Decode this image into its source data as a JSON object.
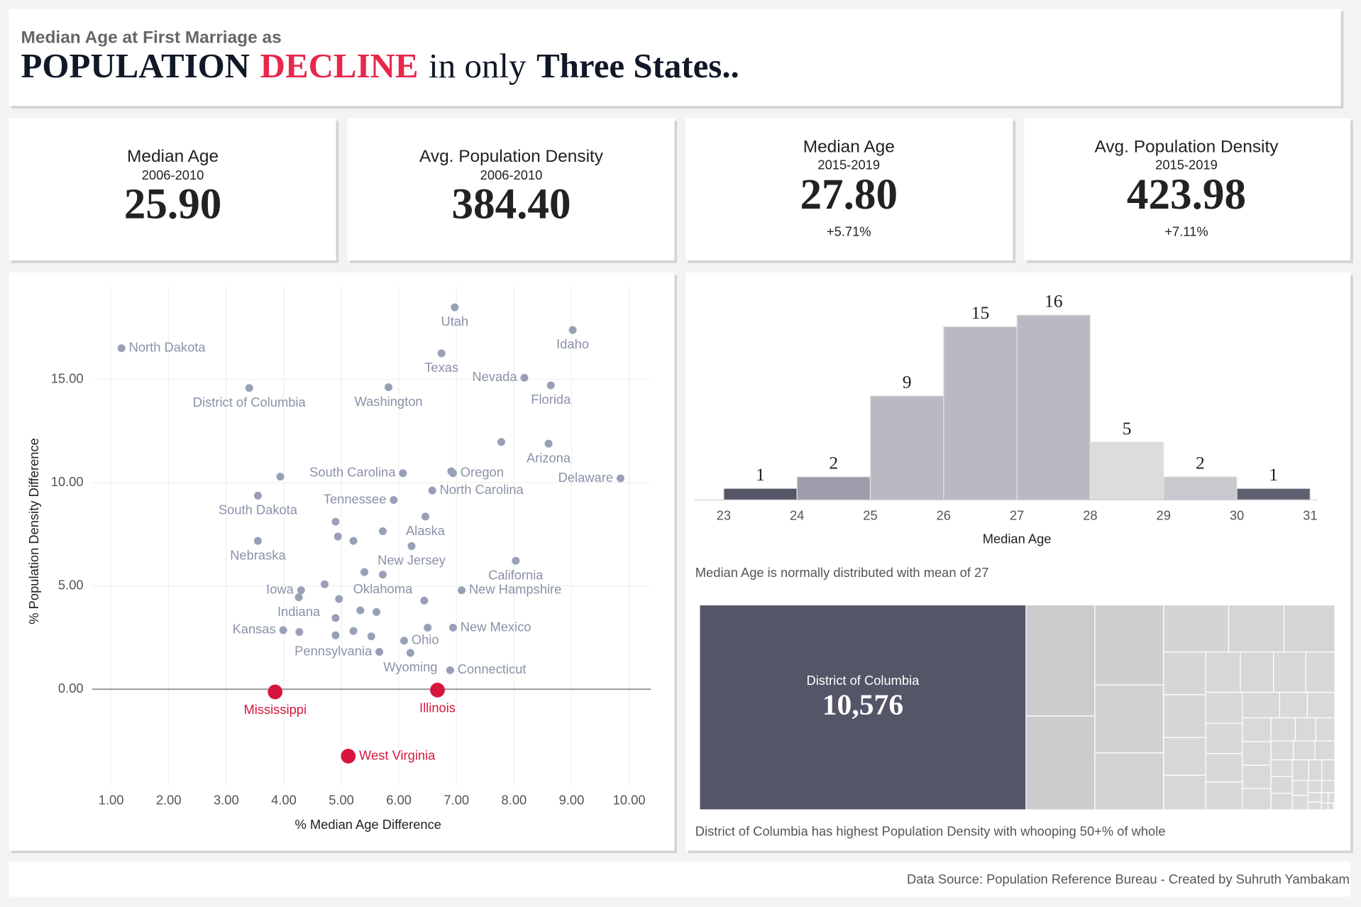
{
  "header": {
    "subtitle": "Median Age at First Marriage as",
    "title_parts": [
      "POPULATION",
      "DECLINE",
      "in only",
      "Three States.."
    ]
  },
  "kpis": [
    {
      "title": "Median Age",
      "period": "2006-2010",
      "value": "25.90"
    },
    {
      "title": "Avg. Population Density",
      "period": "2006-2010",
      "value": "384.40"
    },
    {
      "title": "Median Age",
      "period": "2015-2019",
      "value": "27.80",
      "change": "+5.71%"
    },
    {
      "title": "Avg. Population Density",
      "period": "2015-2019",
      "value": "423.98",
      "change": "+7.11%"
    }
  ],
  "chart_data": [
    {
      "type": "scatter",
      "xlabel": "% Median Age Difference",
      "ylabel": "% Population Density Difference",
      "xlim": [
        0.67,
        10.38
      ],
      "ylim": [
        -4.66,
        19.5
      ],
      "grid": true,
      "xticks": [
        {
          "value": 1,
          "label": "1.00"
        },
        {
          "value": 2,
          "label": "2.00"
        },
        {
          "value": 3,
          "label": "3.00"
        },
        {
          "value": 4,
          "label": "4.00"
        },
        {
          "value": 5,
          "label": "5.00"
        },
        {
          "value": 6,
          "label": "6.00"
        },
        {
          "value": 7,
          "label": "7.00"
        },
        {
          "value": 8,
          "label": "8.00"
        },
        {
          "value": 9,
          "label": "9.00"
        },
        {
          "value": 10,
          "label": "10.00"
        }
      ],
      "yticks": [
        {
          "value": 0,
          "label": "0.00"
        },
        {
          "value": 5,
          "label": "5.00"
        },
        {
          "value": 10,
          "label": "10.00"
        },
        {
          "value": 15,
          "label": "15.00"
        }
      ],
      "series": [
        {
          "color": "#97a0b6",
          "points": [
            {
              "label": "North Dakota",
              "x": 1.18,
              "y": 16.51
            },
            {
              "label": "Utah",
              "x": 6.97,
              "y": 18.49
            },
            {
              "label": "Idaho",
              "x": 9.02,
              "y": 17.39
            },
            {
              "label": "Texas",
              "x": 6.74,
              "y": 16.26
            },
            {
              "label": "District of Columbia",
              "x": 3.4,
              "y": 14.58
            },
            {
              "label": "Washington",
              "x": 5.82,
              "y": 14.62
            },
            {
              "label": "Nevada",
              "x": 8.18,
              "y": 15.08
            },
            {
              "label": "Florida",
              "x": 8.64,
              "y": 14.71
            },
            {
              "x": 7.78,
              "y": 11.97
            },
            {
              "label": "Arizona",
              "x": 8.6,
              "y": 11.89
            },
            {
              "x": 3.94,
              "y": 10.29
            },
            {
              "label": "South Carolina",
              "x": 6.07,
              "y": 10.46
            },
            {
              "label": "Oregon",
              "x": 6.94,
              "y": 10.46
            },
            {
              "x": 6.91,
              "y": 10.55
            },
            {
              "label": "Delaware",
              "x": 9.85,
              "y": 10.21
            },
            {
              "label": "South Dakota",
              "x": 3.55,
              "y": 9.37
            },
            {
              "label": "Tennessee",
              "x": 5.91,
              "y": 9.16
            },
            {
              "label": "North Carolina",
              "x": 6.58,
              "y": 9.62
            },
            {
              "label": "Alaska",
              "x": 6.46,
              "y": 8.36
            },
            {
              "x": 4.9,
              "y": 8.11
            },
            {
              "x": 5.72,
              "y": 7.65
            },
            {
              "label": "Nebraska",
              "x": 3.55,
              "y": 7.18
            },
            {
              "x": 4.94,
              "y": 7.39
            },
            {
              "x": 5.21,
              "y": 7.18
            },
            {
              "label": "New Jersey",
              "x": 6.22,
              "y": 6.93
            },
            {
              "label": "California",
              "x": 8.03,
              "y": 6.22
            },
            {
              "x": 5.4,
              "y": 5.67
            },
            {
              "label": "Oklahoma",
              "x": 5.72,
              "y": 5.55
            },
            {
              "x": 4.71,
              "y": 5.08
            },
            {
              "label": "Iowa",
              "x": 4.3,
              "y": 4.79
            },
            {
              "label": "New Hampshire",
              "x": 7.09,
              "y": 4.79
            },
            {
              "label": "Indiana",
              "x": 4.26,
              "y": 4.45
            },
            {
              "x": 4.96,
              "y": 4.37
            },
            {
              "x": 6.44,
              "y": 4.29
            },
            {
              "x": 5.33,
              "y": 3.82
            },
            {
              "x": 5.61,
              "y": 3.74
            },
            {
              "x": 4.9,
              "y": 3.45
            },
            {
              "label": "Kansas",
              "x": 3.99,
              "y": 2.86
            },
            {
              "x": 4.27,
              "y": 2.77
            },
            {
              "x": 4.9,
              "y": 2.61
            },
            {
              "x": 5.21,
              "y": 2.82
            },
            {
              "x": 5.52,
              "y": 2.56
            },
            {
              "label": "New Mexico",
              "x": 6.94,
              "y": 2.98
            },
            {
              "x": 6.5,
              "y": 2.98
            },
            {
              "label": "Ohio",
              "x": 6.09,
              "y": 2.35
            },
            {
              "label": "Pennsylvania",
              "x": 5.66,
              "y": 1.81
            },
            {
              "label": "Wyoming",
              "x": 6.2,
              "y": 1.76
            },
            {
              "label": "Connecticut",
              "x": 6.89,
              "y": 0.92
            }
          ]
        },
        {
          "color": "#d6163d",
          "points": [
            {
              "label": "Mississippi",
              "x": 3.85,
              "y": -0.13
            },
            {
              "label": "Illinois",
              "x": 6.67,
              "y": -0.04
            },
            {
              "label": "West Virginia",
              "x": 5.12,
              "y": -3.24
            }
          ]
        }
      ]
    },
    {
      "type": "histogram",
      "xlabel": "Median Age",
      "caption": "Median Age is normally distributed with mean of 27",
      "bins": [
        23,
        24,
        25,
        26,
        27,
        28,
        29,
        30,
        31
      ],
      "counts": [
        1,
        2,
        9,
        15,
        16,
        5,
        2,
        1
      ],
      "colors": [
        "#545566",
        "#9c9cab",
        "#b9b9c3",
        "#b9b9c3",
        "#b9b9c3",
        "#dcdcdc",
        "#c8c8cf",
        "#5e5f70"
      ],
      "xlim": [
        22.6,
        31.1
      ],
      "ylim": [
        0,
        17.5
      ],
      "xticks": [
        23,
        24,
        25,
        26,
        27,
        28,
        29,
        30,
        31
      ]
    },
    {
      "type": "treemap",
      "caption": "District of Columbia has highest Population Density with whooping 50+% of whole",
      "color_scale": [
        "#dadada",
        "#545567"
      ],
      "items": [
        {
          "label": "District of Columbia",
          "value": 10576,
          "value_label": "10,576"
        },
        {
          "value": 1208
        },
        {
          "value": 1021
        },
        {
          "value": 871
        },
        {
          "value": 739
        },
        {
          "value": 618
        },
        {
          "value": 483
        },
        {
          "value": 412
        },
        {
          "value": 378
        },
        {
          "value": 285
        },
        {
          "value": 285
        },
        {
          "value": 251
        },
        {
          "value": 230
        },
        {
          "value": 221
        },
        {
          "value": 211
        },
        {
          "value": 206
        },
        {
          "value": 185
        },
        {
          "value": 179
        },
        {
          "value": 175
        },
        {
          "value": 164
        },
        {
          "value": 161
        },
        {
          "value": 151
        },
        {
          "value": 112
        },
        {
          "value": 111
        },
        {
          "value": 107
        },
        {
          "value": 107
        },
        {
          "value": 105
        },
        {
          "value": 96
        },
        {
          "value": 89
        },
        {
          "value": 75
        },
        {
          "value": 69
        },
        {
          "value": 68
        },
        {
          "value": 64
        },
        {
          "value": 60
        },
        {
          "value": 57
        },
        {
          "value": 57
        },
        {
          "value": 56
        },
        {
          "value": 53
        },
        {
          "value": 43
        },
        {
          "value": 42
        },
        {
          "value": 37
        },
        {
          "value": 35
        },
        {
          "value": 27
        },
        {
          "value": 25
        },
        {
          "value": 20
        },
        {
          "value": 17
        },
        {
          "value": 11
        },
        {
          "value": 11
        },
        {
          "value": 7
        },
        {
          "value": 6
        },
        {
          "value": 1.3
        }
      ]
    }
  ],
  "footer": "Data Source: Population Reference Bureau - Created by Suhruth Yambakam"
}
